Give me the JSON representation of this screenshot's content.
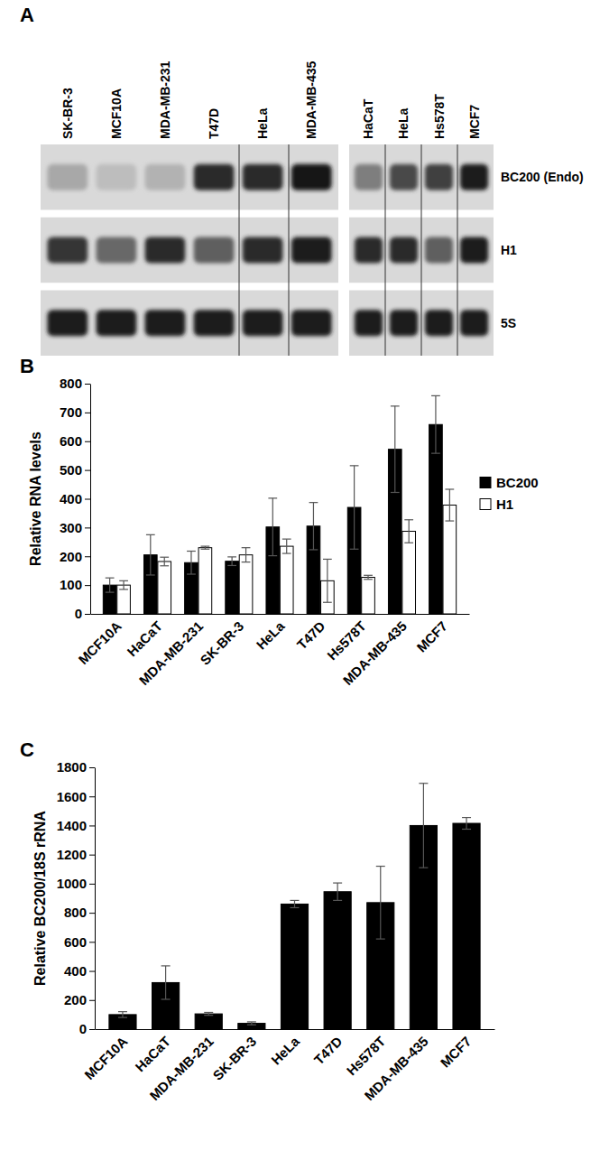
{
  "chart_data": [
    {
      "type": "blot",
      "title": "A",
      "rows": [
        "BC200 (Endo)",
        "H1",
        "5S"
      ],
      "groups": [
        {
          "lanes": [
            "SK-BR-3",
            "MCF10A",
            "MDA-MB-231",
            "T47D",
            "HeLa",
            "MDA-MB-435"
          ],
          "cells": [
            [
              0.25,
              0.15,
              0.2,
              0.85,
              0.85,
              0.95
            ],
            [
              0.8,
              0.55,
              0.85,
              0.6,
              0.85,
              0.9
            ],
            [
              0.9,
              0.9,
              0.9,
              0.9,
              0.9,
              0.9
            ]
          ]
        },
        {
          "lanes": [
            "HaCaT",
            "HeLa",
            "Hs578T",
            "MCF7"
          ],
          "cells": [
            [
              0.45,
              0.7,
              0.75,
              0.9
            ],
            [
              0.85,
              0.85,
              0.6,
              0.9
            ],
            [
              0.9,
              0.9,
              0.9,
              0.9
            ]
          ]
        }
      ]
    },
    {
      "type": "bar",
      "title": "B",
      "categories": [
        "MCF10A",
        "HaCaT",
        "MDA-MB-231",
        "SK-BR-3",
        "HeLa",
        "T47D",
        "Hs578T",
        "MDA-MB-435",
        "MCF7"
      ],
      "series": [
        {
          "name": "BC200",
          "color": "#000000",
          "values": [
            100,
            205,
            178,
            183,
            302,
            305,
            370,
            572,
            658
          ],
          "errors": [
            25,
            70,
            40,
            15,
            100,
            82,
            145,
            150,
            100
          ]
        },
        {
          "name": "H1",
          "color": "#ffffff",
          "values": [
            100,
            182,
            230,
            205,
            235,
            115,
            127,
            287,
            378
          ],
          "errors": [
            15,
            15,
            5,
            25,
            25,
            75,
            7,
            40,
            55
          ]
        }
      ],
      "ylabel": "Relative RNA levels",
      "ylim": [
        0,
        800
      ],
      "yticks": [
        0,
        100,
        200,
        300,
        400,
        500,
        600,
        700,
        800
      ],
      "legend": "right"
    },
    {
      "type": "bar",
      "title": "C",
      "categories": [
        "MCF10A",
        "HaCaT",
        "MDA-MB-231",
        "SK-BR-3",
        "HeLa",
        "T47D",
        "Hs578T",
        "MDA-MB-435",
        "MCF7"
      ],
      "values": [
        100,
        320,
        105,
        40,
        860,
        945,
        870,
        1400,
        1415
      ],
      "errors": [
        20,
        115,
        10,
        10,
        25,
        60,
        250,
        290,
        40
      ],
      "color": "#000000",
      "ylabel": "Relative BC200/18S rRNA",
      "ylim": [
        0,
        1800
      ],
      "yticks": [
        0,
        200,
        400,
        600,
        800,
        1000,
        1200,
        1400,
        1600,
        1800
      ]
    }
  ]
}
